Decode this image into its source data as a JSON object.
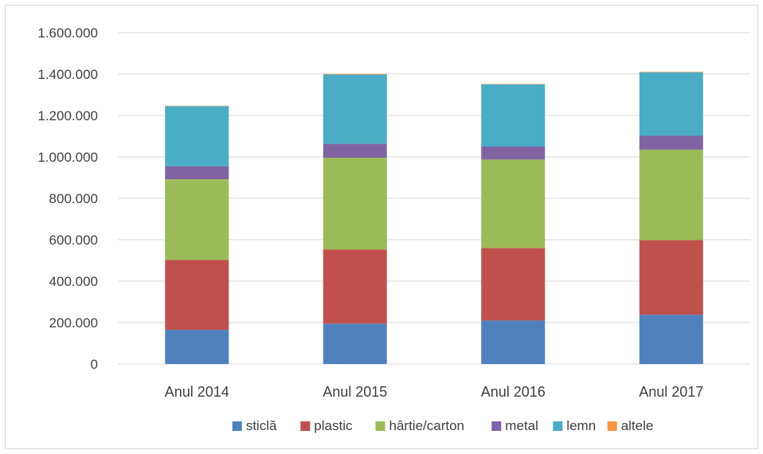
{
  "chart_data": {
    "type": "bar",
    "stacked": true,
    "categories": [
      "Anul 2014",
      "Anul 2015",
      "Anul 2016",
      "Anul 2017"
    ],
    "series": [
      {
        "name": "sticlă",
        "color": "#4f81bd",
        "values": [
          165000,
          195000,
          210000,
          238000
        ]
      },
      {
        "name": "plastic",
        "color": "#c0504d",
        "values": [
          337000,
          358000,
          350000,
          360000
        ]
      },
      {
        "name": "hârtie/carton",
        "color": "#9bbb59",
        "values": [
          390000,
          443000,
          427000,
          437000
        ]
      },
      {
        "name": "metal",
        "color": "#8064a2",
        "values": [
          63000,
          67000,
          63000,
          67000
        ]
      },
      {
        "name": "lemn",
        "color": "#4bacc6",
        "values": [
          290000,
          335000,
          300000,
          307000
        ]
      },
      {
        "name": "altele",
        "color": "#f79646",
        "values": [
          2000,
          3000,
          2000,
          2000
        ]
      }
    ],
    "ylim": [
      0,
      1600000
    ],
    "yticks": [
      "0",
      "200.000",
      "400.000",
      "600.000",
      "800.000",
      "1.000.000",
      "1.200.000",
      "1.400.000",
      "1.600.000"
    ],
    "ytick_values": [
      0,
      200000,
      400000,
      600000,
      800000,
      1000000,
      1200000,
      1400000,
      1600000
    ],
    "grid": true,
    "legend_position": "bottom",
    "title": "",
    "xlabel": "",
    "ylabel": ""
  }
}
